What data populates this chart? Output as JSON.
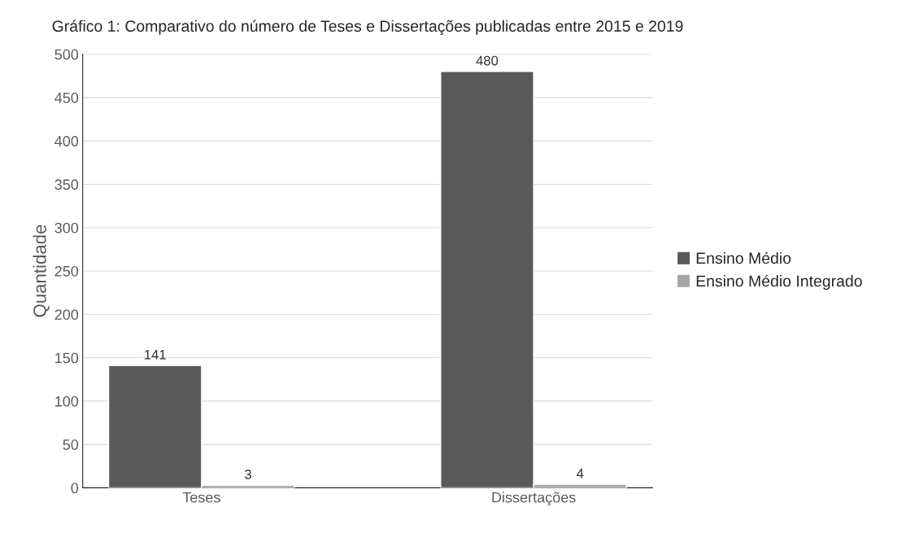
{
  "chart_data": {
    "type": "bar",
    "title": "Gráfico 1: Comparativo do número de Teses e Dissertações publicadas entre 2015 e 2019",
    "ylabel": "Quantidade",
    "categories": [
      "Teses",
      "Dissertações"
    ],
    "series": [
      {
        "name": "Ensino Médio",
        "color": "#595959",
        "values": [
          141,
          480
        ]
      },
      {
        "name": "Ensino Médio Integrado",
        "color": "#a6a6a6",
        "values": [
          3,
          4
        ]
      }
    ],
    "ylim": [
      0,
      500
    ],
    "yticks": [
      0,
      50,
      100,
      150,
      200,
      250,
      300,
      350,
      400,
      450,
      500
    ],
    "grid": "y",
    "legend": "right",
    "data_labels": true
  }
}
